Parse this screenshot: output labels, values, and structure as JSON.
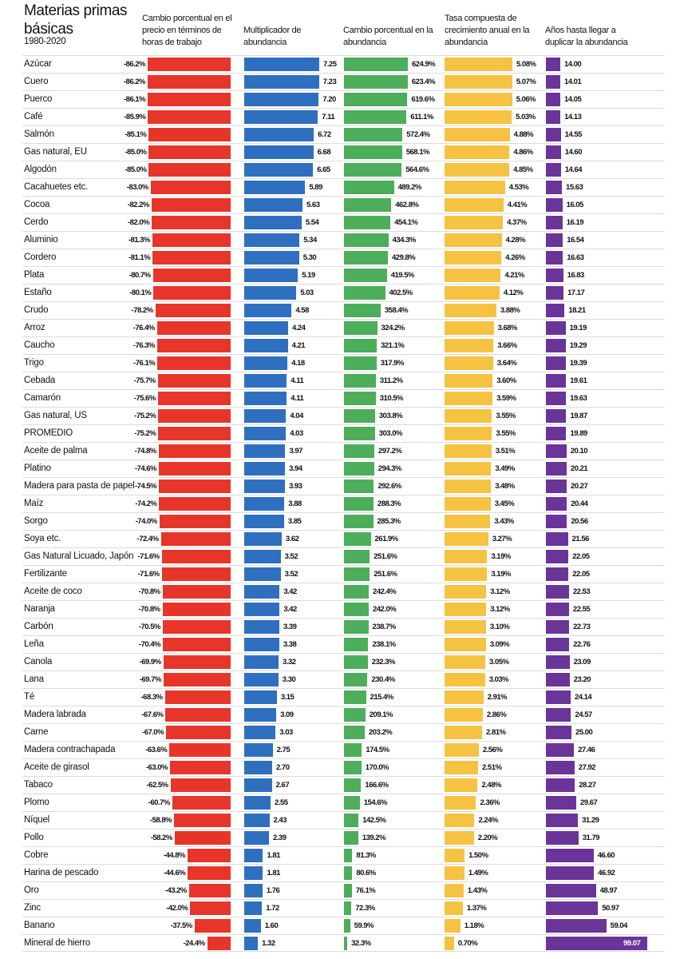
{
  "title": "Materias primas básicas",
  "subtitle": "1980-2020",
  "columns": [
    "Cambio porcentual en el precio en términos de horas de trabajo",
    "Multiplicador de abundancia",
    "Cambio porcentual en la abundancia",
    "Tasa compuesta de crecimiento anual en la abundancia",
    "Años hasta llegar a duplicar la abundancia"
  ],
  "colors": {
    "price_change": "#e8352a",
    "multiplier": "#2f6fbf",
    "abundance_change": "#4cad5b",
    "cagr": "#f5c242",
    "years": "#6a3499"
  },
  "chart_data": {
    "type": "bar",
    "title": "Materias primas básicas",
    "subtitle": "1980-2020",
    "series_keys": [
      "price_change",
      "multiplier",
      "abundance_change",
      "cagr",
      "years"
    ],
    "rows": [
      {
        "name": "Azúcar",
        "price_change": "-86.2%",
        "multiplier": "7.25",
        "abundance_change": "624.9%",
        "cagr": "5.08%",
        "years": "14.00"
      },
      {
        "name": "Cuero",
        "price_change": "-86.2%",
        "multiplier": "7.23",
        "abundance_change": "623.4%",
        "cagr": "5.07%",
        "years": "14.01"
      },
      {
        "name": "Puerco",
        "price_change": "-86.1%",
        "multiplier": "7.20",
        "abundance_change": "619.6%",
        "cagr": "5.06%",
        "years": "14.05"
      },
      {
        "name": "Café",
        "price_change": "-85.9%",
        "multiplier": "7.11",
        "abundance_change": "611.1%",
        "cagr": "5.03%",
        "years": "14.13"
      },
      {
        "name": "Salmón",
        "price_change": "-85.1%",
        "multiplier": "6.72",
        "abundance_change": "572.4%",
        "cagr": "4.88%",
        "years": "14.55"
      },
      {
        "name": "Gas natural, EU",
        "price_change": "-85.0%",
        "multiplier": "6.68",
        "abundance_change": "568.1%",
        "cagr": "4.86%",
        "years": "14.60"
      },
      {
        "name": "Algodón",
        "price_change": "-85.0%",
        "multiplier": "6.65",
        "abundance_change": "564.6%",
        "cagr": "4.85%",
        "years": "14.64"
      },
      {
        "name": "Cacahuetes etc.",
        "price_change": "-83.0%",
        "multiplier": "5.89",
        "abundance_change": "489.2%",
        "cagr": "4.53%",
        "years": "15.63"
      },
      {
        "name": "Cocoa",
        "price_change": "-82.2%",
        "multiplier": "5.63",
        "abundance_change": "462.8%",
        "cagr": "4.41%",
        "years": "16.05"
      },
      {
        "name": "Cerdo",
        "price_change": "-82.0%",
        "multiplier": "5.54",
        "abundance_change": "454.1%",
        "cagr": "4.37%",
        "years": "16.19"
      },
      {
        "name": "Aluminio",
        "price_change": "-81.3%",
        "multiplier": "5.34",
        "abundance_change": "434.3%",
        "cagr": "4.28%",
        "years": "16.54"
      },
      {
        "name": "Cordero",
        "price_change": "-81.1%",
        "multiplier": "5.30",
        "abundance_change": "429.8%",
        "cagr": "4.26%",
        "years": "16.63"
      },
      {
        "name": "Plata",
        "price_change": "-80.7%",
        "multiplier": "5.19",
        "abundance_change": "419.5%",
        "cagr": "4.21%",
        "years": "16.83"
      },
      {
        "name": "Estaño",
        "price_change": "-80.1%",
        "multiplier": "5.03",
        "abundance_change": "402.5%",
        "cagr": "4.12%",
        "years": "17.17"
      },
      {
        "name": "Crudo",
        "price_change": "-78.2%",
        "multiplier": "4.58",
        "abundance_change": "358.4%",
        "cagr": "3.88%",
        "years": "18.21"
      },
      {
        "name": "Arroz",
        "price_change": "-76.4%",
        "multiplier": "4.24",
        "abundance_change": "324.2%",
        "cagr": "3.68%",
        "years": "19.19"
      },
      {
        "name": "Caucho",
        "price_change": "-76.3%",
        "multiplier": "4.21",
        "abundance_change": "321.1%",
        "cagr": "3.66%",
        "years": "19.29"
      },
      {
        "name": "Trigo",
        "price_change": "-76.1%",
        "multiplier": "4.18",
        "abundance_change": "317.9%",
        "cagr": "3.64%",
        "years": "19.39"
      },
      {
        "name": "Cebada",
        "price_change": "-75.7%",
        "multiplier": "4.11",
        "abundance_change": "311.2%",
        "cagr": "3.60%",
        "years": "19.61"
      },
      {
        "name": "Camarón",
        "price_change": "-75.6%",
        "multiplier": "4.11",
        "abundance_change": "310.5%",
        "cagr": "3.59%",
        "years": "19.63"
      },
      {
        "name": "Gas natural, US",
        "price_change": "-75.2%",
        "multiplier": "4.04",
        "abundance_change": "303.8%",
        "cagr": "3.55%",
        "years": "19.87"
      },
      {
        "name": "PROMEDIO",
        "price_change": "-75.2%",
        "multiplier": "4.03",
        "abundance_change": "303.0%",
        "cagr": "3.55%",
        "years": "19.89"
      },
      {
        "name": "Aceite de palma",
        "price_change": "-74.8%",
        "multiplier": "3.97",
        "abundance_change": "297.2%",
        "cagr": "3.51%",
        "years": "20.10"
      },
      {
        "name": "Platino",
        "price_change": "-74.6%",
        "multiplier": "3.94",
        "abundance_change": "294.3%",
        "cagr": "3.49%",
        "years": "20.21"
      },
      {
        "name": "Madera para pasta de papel",
        "price_change": "-74.5%",
        "multiplier": "3.93",
        "abundance_change": "292.6%",
        "cagr": "3.48%",
        "years": "20.27"
      },
      {
        "name": "Maíz",
        "price_change": "-74.2%",
        "multiplier": "3.88",
        "abundance_change": "288.3%",
        "cagr": "3.45%",
        "years": "20.44"
      },
      {
        "name": "Sorgo",
        "price_change": "-74.0%",
        "multiplier": "3.85",
        "abundance_change": "285.3%",
        "cagr": "3.43%",
        "years": "20.56"
      },
      {
        "name": "Soya etc.",
        "price_change": "-72.4%",
        "multiplier": "3.62",
        "abundance_change": "261.9%",
        "cagr": "3.27%",
        "years": "21.56"
      },
      {
        "name": "Gas Natural Licuado, Japón",
        "price_change": "-71.6%",
        "multiplier": "3.52",
        "abundance_change": "251.6%",
        "cagr": "3.19%",
        "years": "22.05"
      },
      {
        "name": "Fertilizante",
        "price_change": "-71.6%",
        "multiplier": "3.52",
        "abundance_change": "251.6%",
        "cagr": "3.19%",
        "years": "22.05"
      },
      {
        "name": "Aceite de coco",
        "price_change": "-70.8%",
        "multiplier": "3.42",
        "abundance_change": "242.4%",
        "cagr": "3.12%",
        "years": "22.53"
      },
      {
        "name": "Naranja",
        "price_change": "-70.8%",
        "multiplier": "3.42",
        "abundance_change": "242.0%",
        "cagr": "3.12%",
        "years": "22.55"
      },
      {
        "name": "Carbón",
        "price_change": "-70.5%",
        "multiplier": "3.39",
        "abundance_change": "238.7%",
        "cagr": "3.10%",
        "years": "22.73"
      },
      {
        "name": "Leña",
        "price_change": "-70.4%",
        "multiplier": "3.38",
        "abundance_change": "238.1%",
        "cagr": "3.09%",
        "years": "22.76"
      },
      {
        "name": "Canola",
        "price_change": "-69.9%",
        "multiplier": "3.32",
        "abundance_change": "232.3%",
        "cagr": "3.05%",
        "years": "23.09"
      },
      {
        "name": "Lana",
        "price_change": "-69.7%",
        "multiplier": "3.30",
        "abundance_change": "230.4%",
        "cagr": "3.03%",
        "years": "23.20"
      },
      {
        "name": "Té",
        "price_change": "-68.3%",
        "multiplier": "3.15",
        "abundance_change": "215.4%",
        "cagr": "2.91%",
        "years": "24.14"
      },
      {
        "name": "Madera labrada",
        "price_change": "-67.6%",
        "multiplier": "3.09",
        "abundance_change": "209.1%",
        "cagr": "2.86%",
        "years": "24.57"
      },
      {
        "name": "Carne",
        "price_change": "-67.0%",
        "multiplier": "3.03",
        "abundance_change": "203.2%",
        "cagr": "2.81%",
        "years": "25.00"
      },
      {
        "name": "Madera contrachapada",
        "price_change": "-63.6%",
        "multiplier": "2.75",
        "abundance_change": "174.5%",
        "cagr": "2.56%",
        "years": "27.46"
      },
      {
        "name": "Aceite de girasol",
        "price_change": "-63.0%",
        "multiplier": "2.70",
        "abundance_change": "170.0%",
        "cagr": "2.51%",
        "years": "27.92"
      },
      {
        "name": "Tabaco",
        "price_change": "-62.5%",
        "multiplier": "2.67",
        "abundance_change": "166.6%",
        "cagr": "2.48%",
        "years": "28.27"
      },
      {
        "name": "Plomo",
        "price_change": "-60.7%",
        "multiplier": "2.55",
        "abundance_change": "154.6%",
        "cagr": "2.36%",
        "years": "29.67"
      },
      {
        "name": "Níquel",
        "price_change": "-58.8%",
        "multiplier": "2.43",
        "abundance_change": "142.5%",
        "cagr": "2.24%",
        "years": "31.29"
      },
      {
        "name": "Pollo",
        "price_change": "-58.2%",
        "multiplier": "2.39",
        "abundance_change": "139.2%",
        "cagr": "2.20%",
        "years": "31.79"
      },
      {
        "name": "Cobre",
        "price_change": "-44.8%",
        "multiplier": "1.81",
        "abundance_change": "81.3%",
        "cagr": "1.50%",
        "years": "46.60"
      },
      {
        "name": "Harina de pescado",
        "price_change": "-44.6%",
        "multiplier": "1.81",
        "abundance_change": "80.6%",
        "cagr": "1.49%",
        "years": "46.92"
      },
      {
        "name": "Oro",
        "price_change": "-43.2%",
        "multiplier": "1.76",
        "abundance_change": "76.1%",
        "cagr": "1.43%",
        "years": "48.97"
      },
      {
        "name": "Zinc",
        "price_change": "-42.0%",
        "multiplier": "1.72",
        "abundance_change": "72.3%",
        "cagr": "1.37%",
        "years": "50.97"
      },
      {
        "name": "Banano",
        "price_change": "-37.5%",
        "multiplier": "1.60",
        "abundance_change": "59.9%",
        "cagr": "1.18%",
        "years": "59.04"
      },
      {
        "name": "Mineral de hierro",
        "price_change": "-24.4%",
        "multiplier": "1.32",
        "abundance_change": "32.3%",
        "cagr": "0.70%",
        "years": "99.07"
      }
    ]
  }
}
